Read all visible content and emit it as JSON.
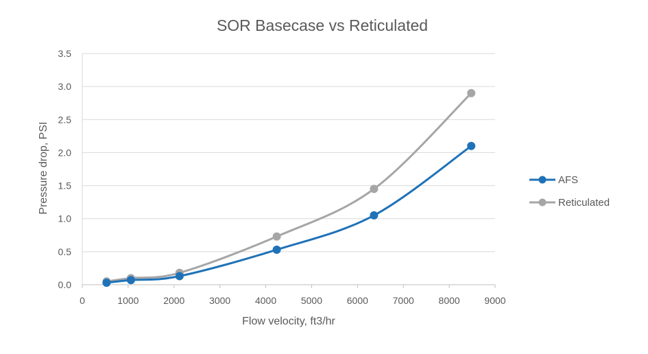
{
  "chart_data": {
    "type": "line",
    "title": "SOR Basecase vs Reticulated",
    "xlabel": "Flow velocity, ft3/hr",
    "ylabel": "Pressure drop, PSI",
    "xlim": [
      0,
      9000
    ],
    "ylim": [
      0,
      3.5
    ],
    "x_ticks": [
      0,
      1000,
      2000,
      3000,
      4000,
      5000,
      6000,
      7000,
      8000,
      9000
    ],
    "x_tick_labels": [
      "0",
      "1000",
      "2000",
      "3000",
      "4000",
      "5000",
      "6000",
      "7000",
      "8000",
      "9000"
    ],
    "y_ticks": [
      0,
      0.5,
      1.0,
      1.5,
      2.0,
      2.5,
      3.0,
      3.5
    ],
    "y_tick_labels": [
      "0.0",
      "0.5",
      "1.0",
      "1.5",
      "2.0",
      "2.5",
      "3.0",
      "3.5"
    ],
    "grid": "horizontal",
    "legend_position": "right",
    "series": [
      {
        "name": "AFS",
        "color": "#1F72B7",
        "x": [
          530,
          1060,
          2120,
          4240,
          6360,
          8480
        ],
        "values": [
          0.03,
          0.07,
          0.13,
          0.53,
          1.05,
          2.1
        ]
      },
      {
        "name": "Reticulated",
        "color": "#A6A6A6",
        "x": [
          530,
          1060,
          2120,
          4240,
          6360,
          8480
        ],
        "values": [
          0.05,
          0.1,
          0.18,
          0.73,
          1.45,
          2.9
        ]
      }
    ]
  }
}
